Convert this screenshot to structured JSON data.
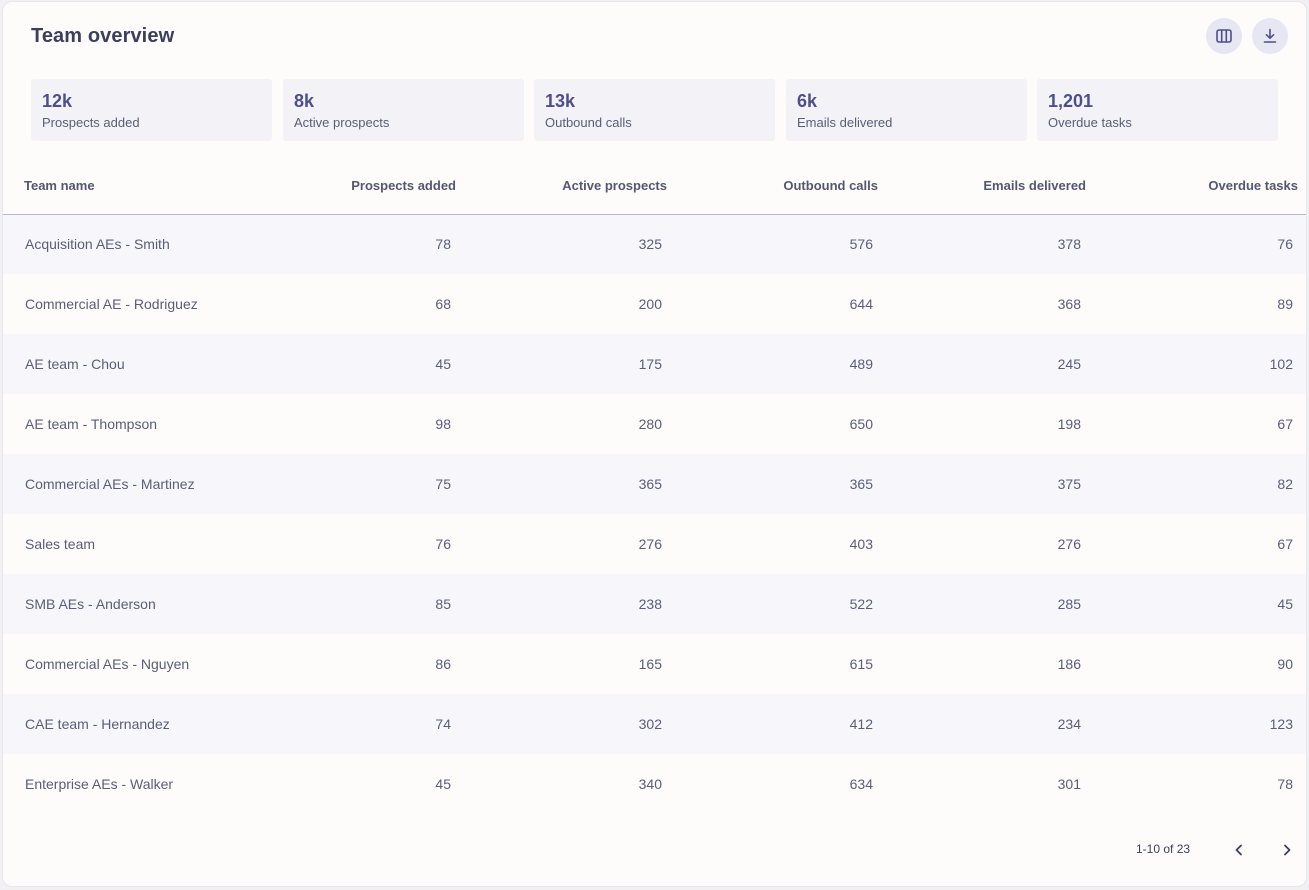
{
  "header": {
    "title": "Team overview",
    "columns_icon": "columns-icon",
    "download_icon": "download-icon"
  },
  "stats": [
    {
      "value": "12k",
      "label": "Prospects added"
    },
    {
      "value": "8k",
      "label": "Active prospects"
    },
    {
      "value": "13k",
      "label": "Outbound calls"
    },
    {
      "value": "6k",
      "label": "Emails delivered"
    },
    {
      "value": "1,201",
      "label": "Overdue tasks"
    }
  ],
  "table": {
    "columns": [
      "Team name",
      "Prospects added",
      "Active prospects",
      "Outbound calls",
      "Emails delivered",
      "Overdue tasks"
    ],
    "rows": [
      [
        "Acquisition AEs - Smith",
        "78",
        "325",
        "576",
        "378",
        "76"
      ],
      [
        "Commercial AE - Rodriguez",
        "68",
        "200",
        "644",
        "368",
        "89"
      ],
      [
        "AE team - Chou",
        "45",
        "175",
        "489",
        "245",
        "102"
      ],
      [
        "AE team - Thompson",
        "98",
        "280",
        "650",
        "198",
        "67"
      ],
      [
        "Commercial AEs - Martinez",
        "75",
        "365",
        "365",
        "375",
        "82"
      ],
      [
        "Sales team",
        "76",
        "276",
        "403",
        "276",
        "67"
      ],
      [
        "SMB AEs - Anderson",
        "85",
        "238",
        "522",
        "285",
        "45"
      ],
      [
        "Commercial AEs - Nguyen",
        "86",
        "165",
        "615",
        "186",
        "90"
      ],
      [
        "CAE team - Hernandez",
        "74",
        "302",
        "412",
        "234",
        "123"
      ],
      [
        "Enterprise AEs - Walker",
        "45",
        "340",
        "634",
        "301",
        "78"
      ]
    ]
  },
  "pagination": {
    "range_text": "1-10 of 23",
    "prev_icon": "chevron-left-icon",
    "next_icon": "chevron-right-icon"
  },
  "colors": {
    "accent": "#4d4e8b",
    "stat_bg": "#f3f3f7",
    "icon_button_bg": "#e6e7f2",
    "row_stripe": "#f7f7fb"
  }
}
